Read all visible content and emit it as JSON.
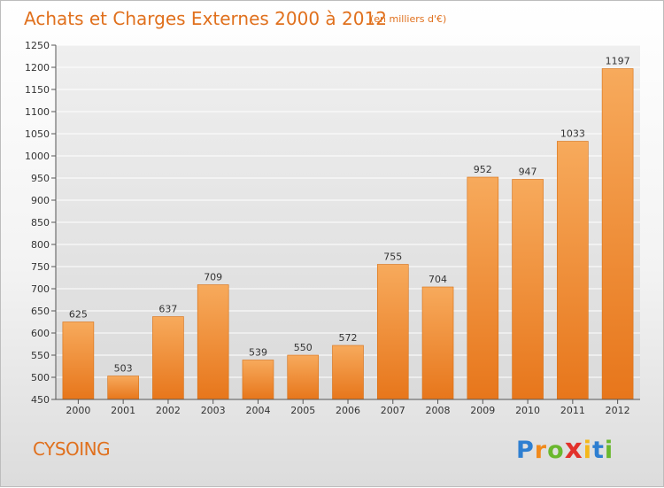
{
  "title": "Achats et Charges Externes 2000 à 2012",
  "subtitle": "(en milliers d'€)",
  "city": "CYSOING",
  "logo": {
    "letters": [
      "P",
      "r",
      "o",
      "x",
      "i",
      "t",
      "i"
    ],
    "colors": [
      "#2e7fd1",
      "#f18a1c",
      "#6ab82e",
      "#e2312b",
      "#f4b71a",
      "#2e7fd1",
      "#6ab82e"
    ]
  },
  "colors": {
    "bar": "#f08c2a",
    "bar_light": "#f6a95a",
    "text_accent": "#e0701d"
  },
  "chart_data": {
    "type": "bar",
    "title": "Achats et Charges Externes 2000 à 2012",
    "subtitle": "(en milliers d'€)",
    "categories": [
      "2000",
      "2001",
      "2002",
      "2003",
      "2004",
      "2005",
      "2006",
      "2007",
      "2008",
      "2009",
      "2010",
      "2011",
      "2012"
    ],
    "values": [
      625,
      503,
      637,
      709,
      539,
      550,
      572,
      755,
      704,
      952,
      947,
      1033,
      1197
    ],
    "ylim": [
      450,
      1250
    ],
    "yticks": [
      450,
      500,
      550,
      600,
      650,
      700,
      750,
      800,
      850,
      900,
      950,
      1000,
      1050,
      1100,
      1150,
      1200,
      1250
    ],
    "grid": true,
    "xlabel": "",
    "ylabel": ""
  }
}
